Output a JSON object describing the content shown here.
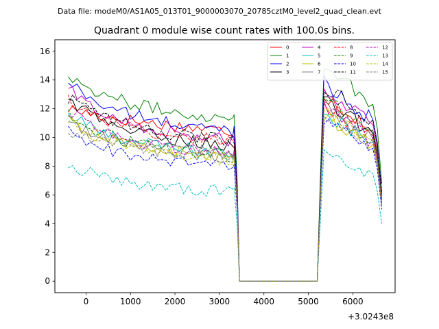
{
  "chart_data": {
    "type": "line",
    "suptitle": "Data file: modeM0/AS1A05_013T01_9000003070_20785cztM0_level2_quad_clean.evt",
    "title": "Quadrant 0 module wise count rates with 100.0s bins.",
    "xlabel": "",
    "ylabel": "",
    "x_offset_label": "+3.0243e8",
    "xlim": [
      -700,
      6950
    ],
    "ylim": [
      -0.8,
      16.8
    ],
    "xticks": [
      0,
      1000,
      2000,
      3000,
      4000,
      5000,
      6000
    ],
    "yticks": [
      0,
      2,
      4,
      6,
      8,
      10,
      12,
      14,
      16
    ],
    "legend_position": "top-right",
    "series": [
      {
        "name": "0",
        "color": "#ff0000",
        "dash": "solid",
        "base": 11.3,
        "start": 12.0,
        "end": 10.6,
        "post": 11.6
      },
      {
        "name": "1",
        "color": "#008000",
        "dash": "solid",
        "base": 12.2,
        "start": 14.4,
        "end": 11.6,
        "post": 13.6
      },
      {
        "name": "2",
        "color": "#0000ff",
        "dash": "solid",
        "base": 11.3,
        "start": 13.9,
        "end": 10.8,
        "post": 12.4
      },
      {
        "name": "3",
        "color": "#000000",
        "dash": "solid",
        "base": 10.2,
        "start": 12.7,
        "end": 9.3,
        "post": 11.3
      },
      {
        "name": "4",
        "color": "#bf00bf",
        "dash": "solid",
        "base": 10.6,
        "start": 13.4,
        "end": 10.0,
        "post": 12.0
      },
      {
        "name": "5",
        "color": "#00bfbf",
        "dash": "solid",
        "base": 9.6,
        "start": 11.6,
        "end": 9.0,
        "post": 10.6
      },
      {
        "name": "6",
        "color": "#bfbf00",
        "dash": "solid",
        "base": 9.3,
        "start": 11.4,
        "end": 8.6,
        "post": 10.4
      },
      {
        "name": "7",
        "color": "#808080",
        "dash": "solid",
        "base": 9.6,
        "start": 10.9,
        "end": 9.1,
        "post": 10.8
      },
      {
        "name": "8",
        "color": "#ff0000",
        "dash": "dashed",
        "base": 10.5,
        "start": 12.7,
        "end": 9.6,
        "post": 11.0
      },
      {
        "name": "9",
        "color": "#008000",
        "dash": "dashed",
        "base": 9.4,
        "start": 11.6,
        "end": 9.1,
        "post": 11.4
      },
      {
        "name": "10",
        "color": "#0000ff",
        "dash": "dashed",
        "base": 8.6,
        "start": 10.4,
        "end": 8.1,
        "post": 10.0
      },
      {
        "name": "11",
        "color": "#000000",
        "dash": "dashed",
        "base": 10.6,
        "start": 12.8,
        "end": 9.8,
        "post": 12.2
      },
      {
        "name": "12",
        "color": "#bf00bf",
        "dash": "dashed",
        "base": 9.6,
        "start": 11.9,
        "end": 9.0,
        "post": 10.8
      },
      {
        "name": "13",
        "color": "#00bfbf",
        "dash": "dashed",
        "base": 6.7,
        "start": 8.2,
        "end": 6.5,
        "post": 8.0
      },
      {
        "name": "14",
        "color": "#bfbf00",
        "dash": "dashed",
        "base": 9.1,
        "start": 11.3,
        "end": 8.8,
        "post": 10.6
      },
      {
        "name": "15",
        "color": "#808080",
        "dash": "dashed",
        "base": 9.3,
        "start": 10.5,
        "end": 8.9,
        "post": 10.5
      }
    ]
  }
}
